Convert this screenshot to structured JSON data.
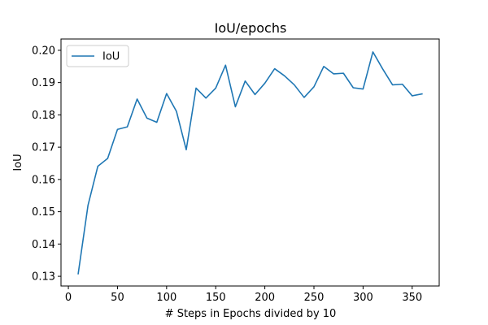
{
  "chart_data": {
    "type": "line",
    "title": "IoU/epochs",
    "xlabel": "# Steps in Epochs divided by 10",
    "ylabel": "IoU",
    "xlim": [
      -7.5,
      377.5
    ],
    "ylim": [
      0.127,
      0.2035
    ],
    "xticks": [
      0,
      50,
      100,
      150,
      200,
      250,
      300,
      350
    ],
    "yticks": [
      0.13,
      0.14,
      0.15,
      0.16,
      0.17,
      0.18,
      0.19,
      0.2
    ],
    "ytick_labels": [
      "0.13",
      "0.14",
      "0.15",
      "0.16",
      "0.17",
      "0.18",
      "0.19",
      "0.20"
    ],
    "grid": false,
    "legend_position": "top-left",
    "series": [
      {
        "name": "IoU",
        "color": "#1f77b4",
        "x": [
          10,
          20,
          30,
          40,
          50,
          60,
          70,
          80,
          90,
          100,
          110,
          120,
          130,
          140,
          150,
          160,
          170,
          180,
          190,
          200,
          210,
          220,
          230,
          240,
          250,
          260,
          270,
          280,
          290,
          300,
          310,
          320,
          330,
          340,
          350,
          360
        ],
        "y": [
          0.1308,
          0.152,
          0.1641,
          0.1665,
          0.1755,
          0.1763,
          0.1849,
          0.179,
          0.1777,
          0.1866,
          0.1811,
          0.1692,
          0.1883,
          0.1852,
          0.1883,
          0.1954,
          0.1825,
          0.1905,
          0.1863,
          0.1898,
          0.1943,
          0.1921,
          0.1893,
          0.1854,
          0.1887,
          0.195,
          0.1927,
          0.1929,
          0.1884,
          0.188,
          0.1995,
          0.1942,
          0.1893,
          0.1895,
          0.1859,
          0.1865
        ]
      }
    ]
  }
}
